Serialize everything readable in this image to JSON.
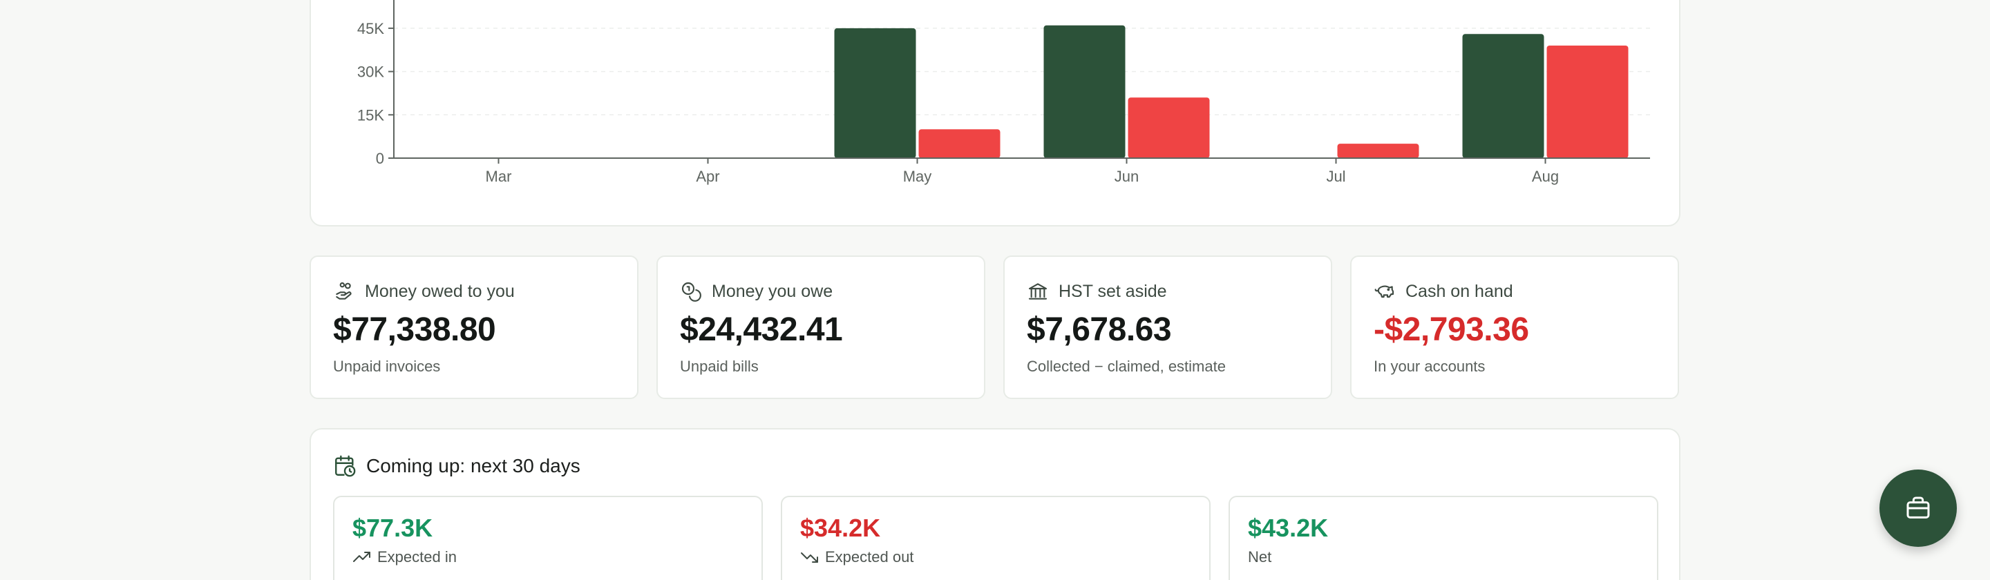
{
  "chart_data": {
    "type": "bar",
    "categories": [
      "Mar",
      "Apr",
      "May",
      "Jun",
      "Jul",
      "Aug"
    ],
    "series": [
      {
        "values": [
          0,
          0,
          45000,
          46000,
          0,
          43000
        ],
        "color": "#2c5239"
      },
      {
        "values": [
          0,
          0,
          10000,
          21000,
          5000,
          39000
        ],
        "color": "#ef4444"
      }
    ],
    "yticks": [
      0,
      15000,
      30000,
      45000
    ],
    "ytick_labels": [
      "0",
      "15K",
      "30K",
      "45K"
    ],
    "ylim": [
      0,
      60000
    ],
    "grid": true
  },
  "stats": [
    {
      "title": "Money owed to you",
      "value": "$77,338.80",
      "sub": "Unpaid invoices",
      "icon": "hand-coins-icon"
    },
    {
      "title": "Money you owe",
      "value": "$24,432.41",
      "sub": "Unpaid bills",
      "icon": "coins-icon"
    },
    {
      "title": "HST set aside",
      "value": "$7,678.63",
      "sub": "Collected − claimed, estimate",
      "icon": "bank-icon"
    },
    {
      "title": "Cash on hand",
      "value": "-$2,793.36",
      "sub": "In your accounts",
      "icon": "piggy-bank-icon"
    }
  ],
  "upcoming": {
    "title": "Coming up: next 30 days",
    "items": [
      {
        "value": "$77.3K",
        "label": "Expected in",
        "icon": "trending-up-icon"
      },
      {
        "value": "$34.2K",
        "label": "Expected out",
        "icon": "trending-down-icon"
      },
      {
        "value": "$43.2K",
        "label": "Net"
      }
    ]
  },
  "colors": {
    "accent": "#2c5239",
    "negative": "#d62b2b",
    "positive": "#17935f"
  },
  "fab": {
    "icon": "briefcase-icon"
  }
}
